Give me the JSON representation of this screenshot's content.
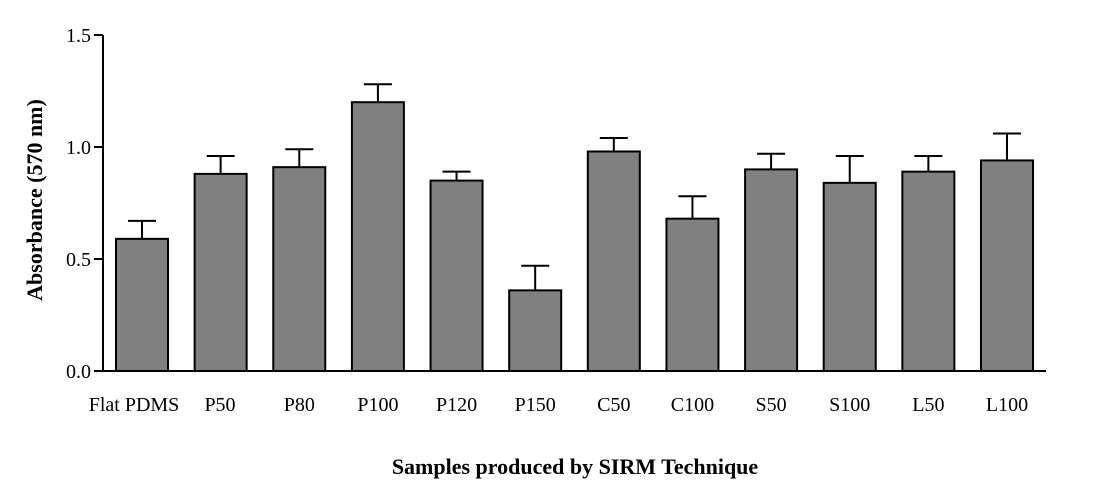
{
  "chart_data": {
    "type": "bar",
    "title": "",
    "xlabel": "Samples produced by SIRM Technique",
    "ylabel": "Absorbance (570 nm)",
    "ylim": [
      0,
      1.5
    ],
    "yticks": [
      "0.0",
      "0.5",
      "1.0",
      "1.5"
    ],
    "grid": false,
    "bar_color": "#808080",
    "categories": [
      "Flat PDMS",
      "P50",
      "P80",
      "P100",
      "P120",
      "P150",
      "C50",
      "C100",
      "S50",
      "S100",
      "L50",
      "L100"
    ],
    "values": [
      0.59,
      0.88,
      0.91,
      1.2,
      0.85,
      0.36,
      0.98,
      0.68,
      0.9,
      0.84,
      0.89,
      0.94
    ],
    "errors": [
      0.08,
      0.08,
      0.08,
      0.08,
      0.04,
      0.11,
      0.06,
      0.1,
      0.07,
      0.12,
      0.07,
      0.12
    ]
  }
}
